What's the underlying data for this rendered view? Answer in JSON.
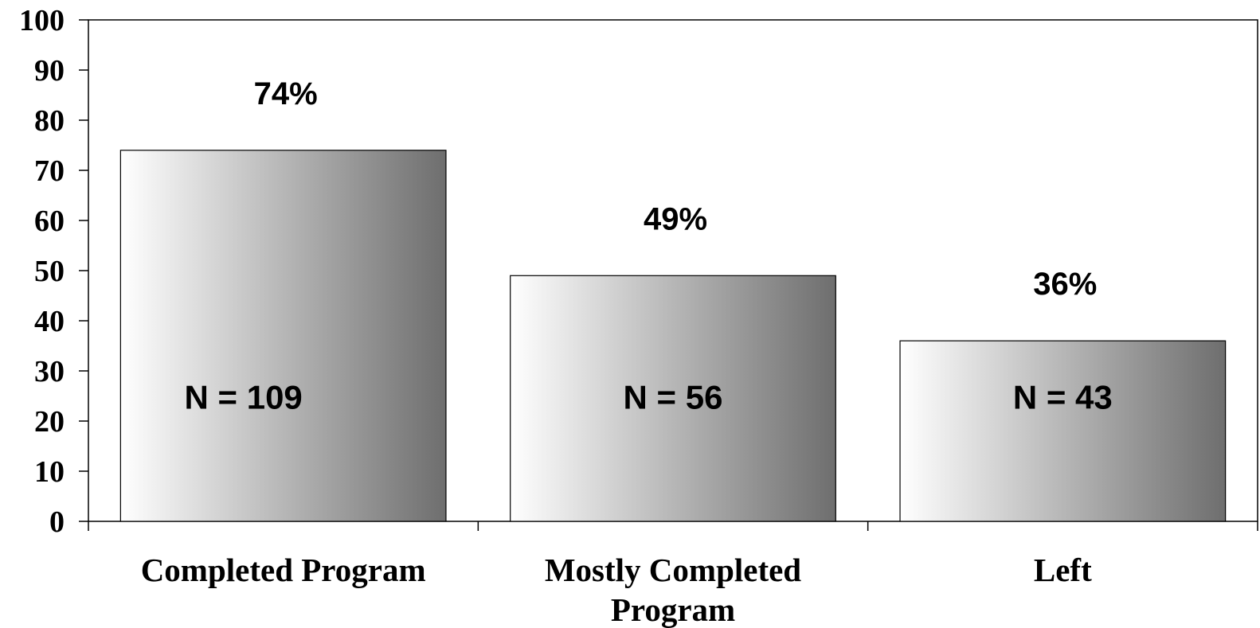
{
  "chart_data": {
    "type": "bar",
    "categories": [
      "Completed Program",
      "Mostly Completed Program",
      "Left"
    ],
    "category_label_lines": [
      [
        "Completed Program"
      ],
      [
        "Mostly Completed",
        "Program"
      ],
      [
        "Left"
      ]
    ],
    "values": [
      74,
      49,
      36
    ],
    "data_labels": [
      "74%",
      "49%",
      "36%"
    ],
    "bar_annotations": [
      "N = 109",
      "N = 56",
      "N = 43"
    ],
    "yticks": [
      0,
      10,
      20,
      30,
      40,
      50,
      60,
      70,
      80,
      90,
      100
    ],
    "ylim": [
      0,
      100
    ],
    "title": "",
    "xlabel": "",
    "ylabel": "",
    "grid": false,
    "bar_fill": "horizontal gradient white to gray",
    "colors": {
      "gradient_start": "#ffffff",
      "gradient_end": "#6e6e6e",
      "axis": "#000000"
    }
  }
}
